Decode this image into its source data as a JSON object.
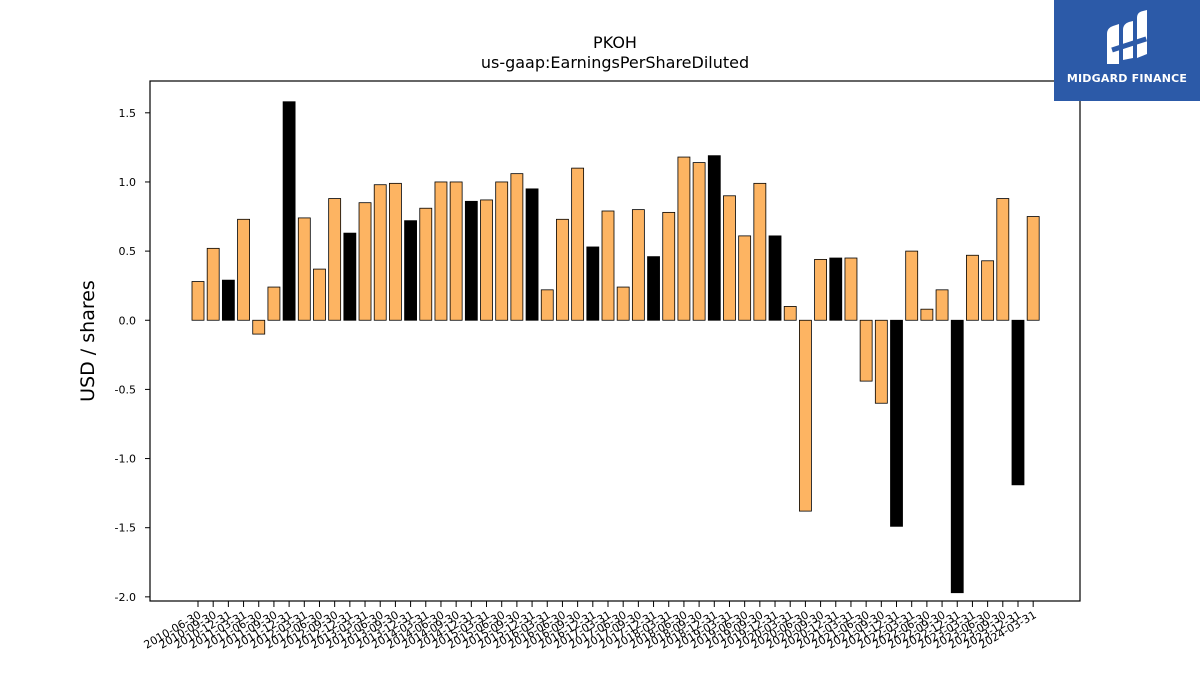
{
  "brand": {
    "name": "MIDGARD FINANCE",
    "logo_icon": "midgard-m-icon",
    "color": "#2c5aa8"
  },
  "chart_data": {
    "type": "bar",
    "title": "PKOH",
    "subtitle": "us-gaap:EarningsPerShareDiluted",
    "ylabel": "USD / shares",
    "xlabel": "",
    "ylim": [
      -2.03,
      1.73
    ],
    "yticks": [
      -2.0,
      -1.5,
      -1.0,
      -0.5,
      0.0,
      0.5,
      1.0,
      1.5
    ],
    "colors": {
      "regular": "#fdb462",
      "annual": "#000000",
      "edge": "#000000"
    },
    "categories": [
      "2010-06-30",
      "2010-09-30",
      "2010-12-31",
      "2011-03-31",
      "2011-06-30",
      "2011-09-30",
      "2011-12-31",
      "2012-03-31",
      "2012-06-30",
      "2012-09-30",
      "2012-12-31",
      "2013-03-31",
      "2013-06-30",
      "2013-09-30",
      "2013-12-31",
      "2014-03-31",
      "2014-06-30",
      "2014-09-30",
      "2014-12-31",
      "2015-03-31",
      "2015-06-30",
      "2015-09-30",
      "2015-12-31",
      "2016-03-31",
      "2016-06-30",
      "2016-09-30",
      "2016-12-31",
      "2017-03-31",
      "2017-06-30",
      "2017-09-30",
      "2017-12-31",
      "2018-03-31",
      "2018-06-30",
      "2018-09-30",
      "2018-12-31",
      "2019-03-31",
      "2019-06-30",
      "2019-09-30",
      "2019-12-31",
      "2020-03-31",
      "2020-06-30",
      "2020-09-30",
      "2020-12-31",
      "2021-03-31",
      "2021-06-30",
      "2021-09-30",
      "2021-12-31",
      "2022-03-31",
      "2022-06-30",
      "2022-09-30",
      "2022-12-31",
      "2023-03-31",
      "2023-06-30",
      "2023-09-30",
      "2023-12-31",
      "2024-03-31"
    ],
    "values": [
      0.28,
      0.52,
      0.29,
      0.73,
      -0.1,
      0.24,
      1.58,
      0.74,
      0.37,
      0.88,
      0.63,
      0.85,
      0.98,
      0.99,
      0.72,
      0.81,
      1.0,
      1.0,
      0.86,
      0.87,
      1.0,
      1.06,
      0.95,
      0.22,
      0.73,
      1.1,
      0.53,
      0.79,
      0.24,
      0.8,
      0.46,
      0.78,
      1.18,
      1.14,
      1.19,
      0.9,
      0.61,
      0.99,
      0.61,
      0.1,
      -1.38,
      0.44,
      0.45,
      0.45,
      -0.44,
      -0.6,
      -1.49,
      0.5,
      0.08,
      0.22,
      -1.97,
      0.47,
      0.43,
      0.88,
      -1.19,
      0.75
    ],
    "annual_flags": [
      0,
      0,
      1,
      0,
      0,
      0,
      1,
      0,
      0,
      0,
      1,
      0,
      0,
      0,
      1,
      0,
      0,
      0,
      1,
      0,
      0,
      0,
      1,
      0,
      0,
      0,
      1,
      0,
      0,
      0,
      1,
      0,
      0,
      0,
      1,
      0,
      0,
      0,
      1,
      0,
      0,
      0,
      1,
      0,
      0,
      0,
      1,
      0,
      0,
      0,
      1,
      0,
      0,
      0,
      1,
      0
    ]
  }
}
